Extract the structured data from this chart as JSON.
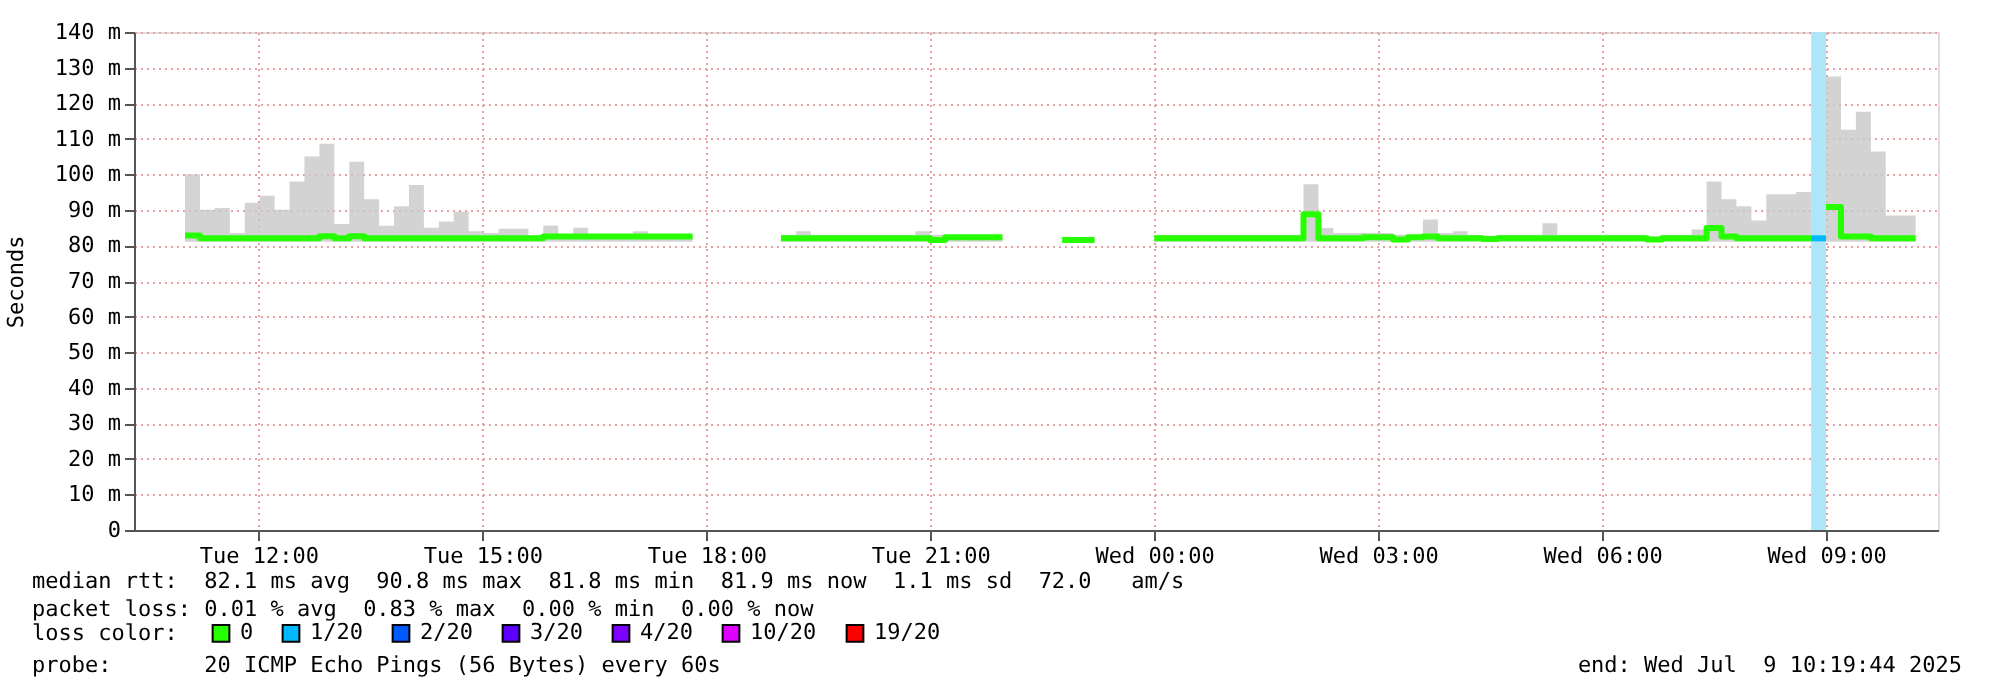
{
  "chart_data": {
    "type": "step",
    "ylabel": "Seconds",
    "legend_title": "loss color:",
    "legend": "bottom",
    "grid": true,
    "marker": "none",
    "xlim": [
      "2025-07-08T10:20",
      "2025-07-09T10:30"
    ],
    "xticks": [
      {
        "value": "2025-07-08T12:00",
        "label": "Tue 12:00"
      },
      {
        "value": "2025-07-08T15:00",
        "label": "Tue 15:00"
      },
      {
        "value": "2025-07-08T18:00",
        "label": "Tue 18:00"
      },
      {
        "value": "2025-07-08T21:00",
        "label": "Tue 21:00"
      },
      {
        "value": "2025-07-09T00:00",
        "label": "Wed 00:00"
      },
      {
        "value": "2025-07-09T03:00",
        "label": "Wed 03:00"
      },
      {
        "value": "2025-07-09T06:00",
        "label": "Wed 06:00"
      },
      {
        "value": "2025-07-09T09:00",
        "label": "Wed 09:00"
      }
    ],
    "ylim": [
      0,
      140
    ],
    "yticks": [
      0,
      {
        "value": 10,
        "label": "10 m"
      },
      {
        "value": 20,
        "label": "20 m"
      },
      {
        "value": 30,
        "label": "30 m"
      },
      {
        "value": 40,
        "label": "40 m"
      },
      {
        "value": 50,
        "label": "50 m"
      },
      {
        "value": 60,
        "label": "60 m"
      },
      {
        "value": 70,
        "label": "70 m"
      },
      {
        "value": 80,
        "label": "80 m"
      },
      {
        "value": 90,
        "label": "90 m"
      },
      {
        "value": 100,
        "label": "100 m"
      },
      {
        "value": 110,
        "label": "110 m"
      },
      {
        "value": 120,
        "label": "120 m"
      },
      {
        "value": 130,
        "label": "130 m"
      },
      {
        "value": 140,
        "label": "140 m"
      }
    ],
    "bands": [
      {
        "axis": "x",
        "from": "2025-07-09T08:48",
        "to": "2025-07-09T09:00",
        "color": "#aee6f9"
      }
    ],
    "series": [
      {
        "name": "0",
        "color": "#26ff00",
        "x": [
          "2025-07-08T11:01",
          "2025-07-08T11:13",
          "2025-07-08T11:25",
          "2025-07-08T11:37",
          "2025-07-08T11:49",
          "2025-07-08T12:01",
          "2025-07-08T12:13",
          "2025-07-08T12:25",
          "2025-07-08T12:37",
          "2025-07-08T12:49",
          "2025-07-08T13:01",
          "2025-07-08T13:13",
          "2025-07-08T13:25",
          "2025-07-08T13:37",
          "2025-07-08T13:49",
          "2025-07-08T14:01",
          "2025-07-08T14:13",
          "2025-07-08T14:25",
          "2025-07-08T14:37",
          "2025-07-08T14:49",
          "2025-07-08T15:01",
          "2025-07-08T15:13",
          "2025-07-08T15:25",
          "2025-07-08T15:37",
          "2025-07-08T15:49",
          "2025-07-08T16:01",
          "2025-07-08T16:13",
          "2025-07-08T16:25",
          "2025-07-08T17:01",
          "2025-07-08T17:13",
          "2025-07-08T17:49"
        ],
        "values": [
          82.8,
          82,
          82,
          82,
          82,
          82,
          82,
          82,
          82,
          82.6,
          82,
          82.6,
          82,
          82,
          82,
          82,
          82,
          82,
          82,
          82,
          82,
          82,
          82,
          82,
          82.5,
          82.5,
          82.5,
          82.5,
          82.5,
          82.5,
          82.5
        ],
        "lower": [
          81,
          81,
          81,
          81,
          81,
          81,
          81,
          81,
          81,
          81,
          81,
          81,
          81,
          81,
          81,
          81,
          81,
          81,
          81,
          81,
          81,
          81,
          81,
          81,
          81,
          81,
          81,
          81,
          81,
          81,
          81
        ],
        "upper": [
          100,
          90,
          90.5,
          83.5,
          92,
          94,
          90,
          98,
          105,
          108.6,
          86,
          103.5,
          93,
          85.5,
          91,
          97,
          85,
          86.7,
          89.5,
          84,
          83.5,
          84.7,
          84.7,
          82.8,
          85.6,
          83,
          85,
          83,
          84,
          83,
          83
        ]
      },
      {
        "color": "#26ff00",
        "x": [
          "2025-07-08T19:00",
          "2025-07-08T19:12",
          "2025-07-08T19:24",
          "2025-07-08T20:48",
          "2025-07-08T21:00",
          "2025-07-08T21:12",
          "2025-07-08T21:58"
        ],
        "values": [
          82,
          82,
          82,
          82,
          81.5,
          82.3,
          82.3
        ],
        "lower": [
          81,
          81,
          81,
          81,
          81,
          81,
          81
        ],
        "upper": [
          83,
          84,
          83,
          84,
          83,
          83,
          83
        ]
      },
      {
        "color": "#26ff00",
        "x": [
          "2025-07-08T22:46",
          "2025-07-08T23:12"
        ],
        "values": [
          81.5,
          81.5
        ],
        "lower": [
          81,
          81
        ],
        "upper": [
          81.8,
          81.8
        ]
      },
      {
        "color": "#26ff00",
        "x": [
          "2025-07-09T00:00",
          "2025-07-09T02:00",
          "2025-07-09T02:12",
          "2025-07-09T02:24",
          "2025-07-09T02:48",
          "2025-07-09T03:12",
          "2025-07-09T03:24",
          "2025-07-09T03:36",
          "2025-07-09T03:48",
          "2025-07-09T04:00",
          "2025-07-09T04:12",
          "2025-07-09T04:24",
          "2025-07-09T04:36",
          "2025-07-09T05:12",
          "2025-07-09T05:24",
          "2025-07-09T06:36",
          "2025-07-09T06:48",
          "2025-07-09T07:12",
          "2025-07-09T07:24",
          "2025-07-09T07:36",
          "2025-07-09T07:48",
          "2025-07-09T08:00",
          "2025-07-09T08:12",
          "2025-07-09T08:24",
          "2025-07-09T08:36",
          "2025-07-09T08:48"
        ],
        "values": [
          82,
          88.8,
          82,
          82,
          82.3,
          81.7,
          82.3,
          82.5,
          82,
          82,
          82,
          81.8,
          82,
          82,
          82,
          81.7,
          82,
          82,
          84.9,
          82.5,
          82,
          82,
          82,
          82,
          82,
          82
        ],
        "lower": [
          81,
          81,
          81,
          81,
          81,
          81,
          81,
          81,
          81,
          81,
          81,
          81,
          81,
          81,
          81,
          81,
          81,
          81,
          81,
          81,
          81,
          81,
          81,
          81,
          81,
          81
        ],
        "upper": [
          83,
          97.2,
          84.9,
          83.5,
          83.5,
          83,
          83,
          87.3,
          83.5,
          84,
          83,
          82.5,
          83,
          86.2,
          83,
          82.5,
          83,
          84.5,
          98,
          93,
          91,
          87,
          94.4,
          94.4,
          95,
          95
        ]
      },
      {
        "color": "#26ff00",
        "x": [
          "2025-07-09T09:00",
          "2025-07-09T09:12",
          "2025-07-09T09:24",
          "2025-07-09T09:36",
          "2025-07-09T09:48",
          "2025-07-09T10:00",
          "2025-07-09T10:12"
        ],
        "values": [
          90.8,
          82.5,
          82.5,
          82,
          82,
          82,
          82
        ],
        "lower": [
          81,
          81,
          81,
          81,
          81,
          81,
          81
        ],
        "upper": [
          127.5,
          112.5,
          117.6,
          106.4,
          88.4,
          88.4,
          88.4
        ]
      },
      {
        "name": "1/20",
        "color": "#00b8ff",
        "x": [
          "2025-07-09T08:48",
          "2025-07-09T09:00"
        ],
        "values": [
          82,
          82
        ]
      },
      {
        "name": "2/20",
        "color": "#0059ff"
      },
      {
        "name": "3/20",
        "color": "#5e00ff"
      },
      {
        "name": "4/20",
        "color": "#7e00ff"
      },
      {
        "name": "10/20",
        "color": "#dd00ff"
      },
      {
        "name": "19/20",
        "color": "#ff0000"
      }
    ],
    "annotations": [
      "median rtt:  82.1 ms avg  90.8 ms max  81.8 ms min  81.9 ms now  1.1 ms sd  72.0   am/s",
      "packet loss: 0.01 % avg  0.83 % max  0.00 % min  0.00 % now",
      "probe:       20 ICMP Echo Pings (56 Bytes) every 60s",
      "end: Wed Jul  9 10:19:44 2025"
    ]
  }
}
